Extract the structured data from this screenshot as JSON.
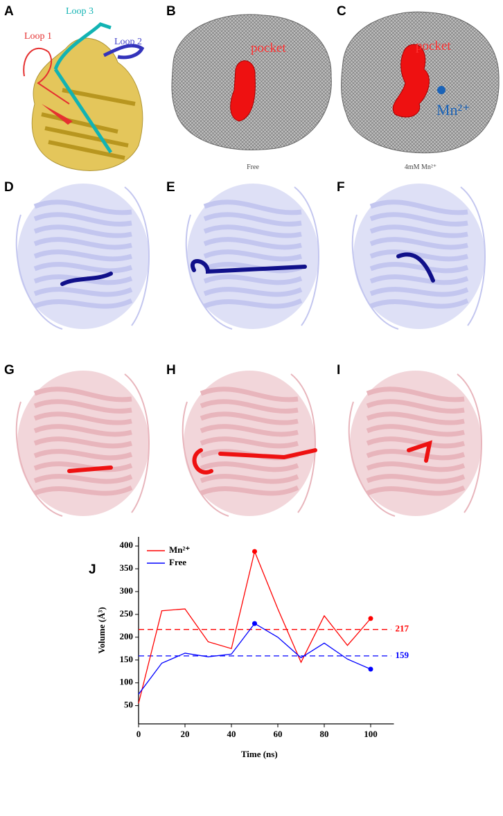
{
  "figure": {
    "panel_labels": [
      "A",
      "B",
      "C",
      "D",
      "E",
      "F",
      "G",
      "H",
      "I"
    ],
    "panel_a": {
      "loops": [
        "Loop 1",
        "Loop 3",
        "Loop 2"
      ]
    },
    "panel_b": {
      "pocket": "pocket",
      "caption": "Free"
    },
    "panel_c": {
      "pocket": "pocket",
      "ion": "Mn²⁺",
      "caption": "4mM Mn²⁺"
    }
  },
  "chart_data": {
    "type": "line",
    "panel_label": "J",
    "x_label": "Time (ns)",
    "y_label": "Volume (Å³)",
    "x": [
      0,
      10,
      20,
      30,
      40,
      50,
      60,
      70,
      80,
      90,
      100
    ],
    "series": [
      {
        "name": "Mn²⁺",
        "color": "#ff0000",
        "values": [
          55,
          258,
          262,
          190,
          175,
          388,
          262,
          145,
          247,
          182,
          241
        ],
        "marker_indices": [
          5,
          10
        ]
      },
      {
        "name": "Free",
        "color": "#0000ff",
        "values": [
          75,
          143,
          165,
          157,
          163,
          230,
          200,
          155,
          187,
          152,
          130
        ],
        "marker_indices": [
          5,
          10
        ]
      }
    ],
    "reference_lines": [
      {
        "value": 217,
        "color": "#ff0000"
      },
      {
        "value": 159,
        "color": "#0000ff"
      }
    ],
    "xlim": [
      0,
      110
    ],
    "ylim": [
      10,
      420
    ],
    "xticks": [
      0,
      20,
      40,
      60,
      80,
      100
    ],
    "yticks": [
      50,
      100,
      150,
      200,
      250,
      300,
      350,
      400
    ],
    "legend": "top-left"
  }
}
